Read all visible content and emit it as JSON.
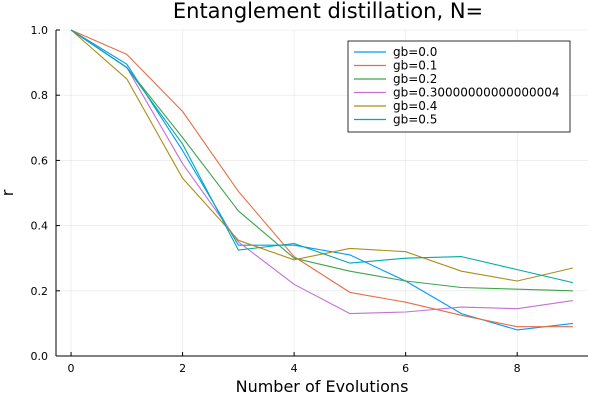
{
  "chart_data": {
    "type": "line",
    "title": "Entanglement distillation, N=",
    "xlabel": "Number of Evolutions",
    "ylabel": "r",
    "xlim": [
      -0.27,
      9.27
    ],
    "ylim": [
      0.0,
      1.0
    ],
    "x_ticks": [
      0,
      2,
      4,
      6,
      8
    ],
    "y_ticks": [
      0.0,
      0.2,
      0.4,
      0.6,
      0.8,
      1.0
    ],
    "x_tick_labels": [
      "0",
      "2",
      "4",
      "6",
      "8"
    ],
    "y_tick_labels": [
      "0.0",
      "0.2",
      "0.4",
      "0.6",
      "0.8",
      "1.0"
    ],
    "grid": true,
    "legend_position": "top-right",
    "x": [
      0,
      1,
      2,
      3,
      4,
      5,
      6,
      7,
      8,
      9
    ],
    "series": [
      {
        "name": "gb=0.0",
        "color": "#009AFA",
        "values": [
          1.0,
          0.895,
          0.63,
          0.34,
          0.34,
          0.31,
          0.23,
          0.13,
          0.08,
          0.1
        ]
      },
      {
        "name": "gb=0.1",
        "color": "#E36F47",
        "values": [
          1.0,
          0.925,
          0.75,
          0.505,
          0.305,
          0.195,
          0.165,
          0.125,
          0.09,
          0.09
        ]
      },
      {
        "name": "gb=0.2",
        "color": "#3EA44E",
        "values": [
          1.0,
          0.885,
          0.67,
          0.445,
          0.3,
          0.26,
          0.23,
          0.21,
          0.205,
          0.2
        ]
      },
      {
        "name": "gb=0.30000000000000004",
        "color": "#C271D2",
        "values": [
          1.0,
          0.885,
          0.59,
          0.35,
          0.22,
          0.13,
          0.135,
          0.15,
          0.145,
          0.17
        ]
      },
      {
        "name": "gb=0.4",
        "color": "#AC8E18",
        "values": [
          1.0,
          0.85,
          0.545,
          0.355,
          0.295,
          0.33,
          0.32,
          0.26,
          0.23,
          0.27
        ]
      },
      {
        "name": "gb=0.5",
        "color": "#00A9AD",
        "values": [
          1.0,
          0.885,
          0.65,
          0.325,
          0.345,
          0.285,
          0.3,
          0.305,
          0.265,
          0.225
        ]
      }
    ]
  }
}
